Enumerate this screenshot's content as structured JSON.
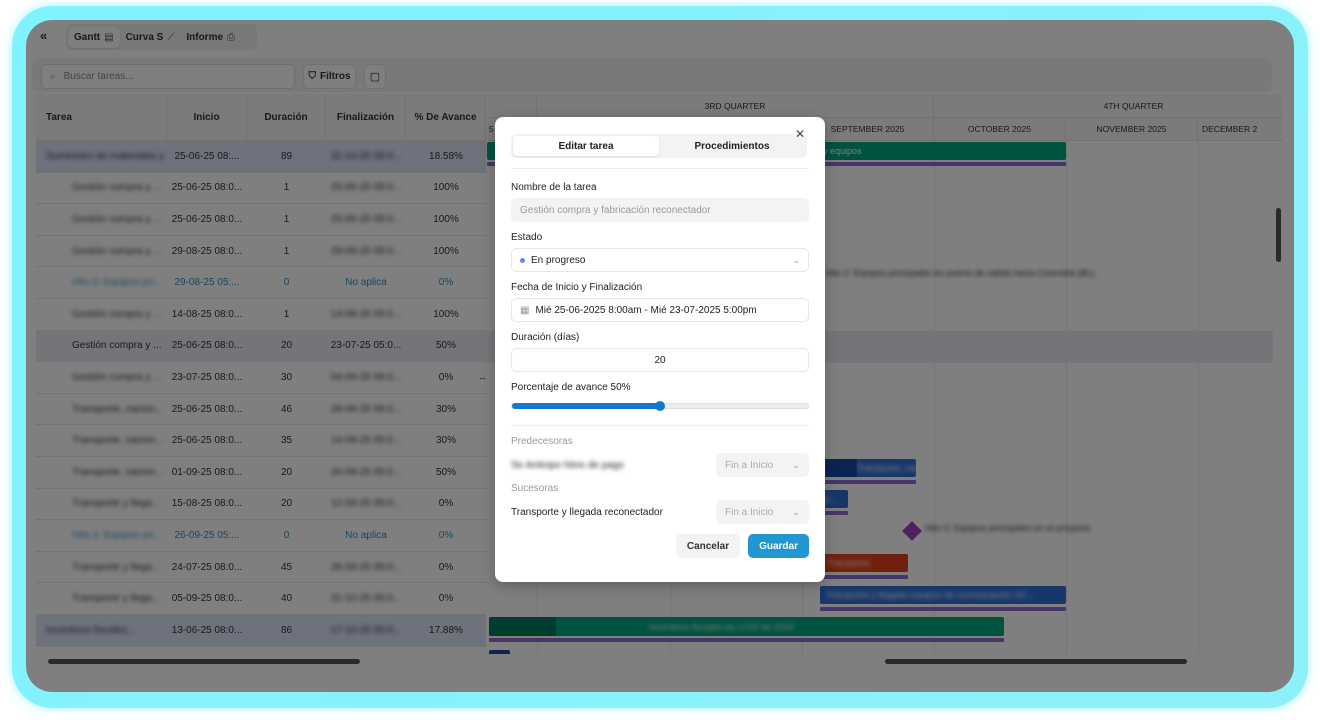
{
  "nav": {
    "collapse_icon": "double-chevron-left",
    "tabs": [
      {
        "label": "Gantt",
        "icon": "gantt-icon",
        "active": true
      },
      {
        "label": "Curva S",
        "icon": "line-chart-icon"
      },
      {
        "label": "Informe",
        "icon": "report-icon"
      }
    ]
  },
  "toolbar": {
    "search_placeholder": "Buscar tareas...",
    "filters_label": "Filtros"
  },
  "table": {
    "columns": [
      "Tarea",
      "Inicio",
      "Duración",
      "Finalización",
      "% De Avance"
    ],
    "rows": [
      {
        "task": "Suministro de materiales y equipos",
        "start": "25-06-25 08:...",
        "duration": "89",
        "end": "31-10-25 05:0...",
        "progress": "18.58%",
        "type": "parent"
      },
      {
        "task": "Gestión compra y ...",
        "start": "25-06-25 08:0...",
        "duration": "1",
        "end": "25-06-25 05:0...",
        "progress": "100%"
      },
      {
        "task": "Gestión compra y ...",
        "start": "25-06-25 08:0...",
        "duration": "1",
        "end": "25-06-25 05:0...",
        "progress": "100%"
      },
      {
        "task": "Gestión compra y ...",
        "start": "29-08-25 08:0...",
        "duration": "1",
        "end": "29-08-25 05:0...",
        "progress": "100%"
      },
      {
        "task": "Hito 3: Equipos pri...",
        "start": "29-08-25 05:...",
        "duration": "0",
        "end": "No aplica",
        "progress": "0%",
        "type": "hito"
      },
      {
        "task": "Gestión compra y ...",
        "start": "14-08-25 08:0...",
        "duration": "1",
        "end": "14-08-25 05:0...",
        "progress": "100%"
      },
      {
        "task": "Gestión compra y ...",
        "start": "25-06-25 08:0...",
        "duration": "20",
        "end": "23-07-25 05:0...",
        "progress": "50%",
        "type": "selected"
      },
      {
        "task": "Gestión compra y ...",
        "start": "23-07-25 08:0...",
        "duration": "30",
        "end": "04-09-25 05:0...",
        "progress": "0%"
      },
      {
        "task": "Transporte, nacion...",
        "start": "25-06-25 08:0...",
        "duration": "46",
        "end": "28-08-25 05:0...",
        "progress": "30%"
      },
      {
        "task": "Transporte, nacion...",
        "start": "25-06-25 08:0...",
        "duration": "35",
        "end": "14-08-25 05:0...",
        "progress": "30%"
      },
      {
        "task": "Transporte, nacion...",
        "start": "01-09-25 08:0...",
        "duration": "20",
        "end": "26-09-25 05:0...",
        "progress": "50%"
      },
      {
        "task": "Transporte y llega...",
        "start": "15-08-25 08:0...",
        "duration": "20",
        "end": "12-09-25 05:0...",
        "progress": "0%"
      },
      {
        "task": "Hito 3: Equipos pri...",
        "start": "26-09-25 05:...",
        "duration": "0",
        "end": "No aplica",
        "progress": "0%",
        "type": "hito"
      },
      {
        "task": "Transporte y llega...",
        "start": "24-07-25 08:0...",
        "duration": "45",
        "end": "26-09-25 05:0...",
        "progress": "0%"
      },
      {
        "task": "Transporte y llega...",
        "start": "05-09-25 08:0...",
        "duration": "40",
        "end": "31-10-25 05:0...",
        "progress": "0%"
      },
      {
        "task": "Incentivos fiscales...",
        "start": "13-06-25 08:0...",
        "duration": "86",
        "end": "17-10-25 05:0...",
        "progress": "17.88%",
        "type": "parent"
      }
    ]
  },
  "gantt": {
    "quarters": [
      "",
      "3RD QUARTER",
      "4TH QUARTER"
    ],
    "months": [
      "5",
      "",
      "",
      "SEPTEMBER 2025",
      "OCTOBER 2025",
      "NOVEMBER 2025",
      "DECEMBER 2"
    ],
    "labels": {
      "bar0": "y equipos",
      "hito1": "Hito 2: Equipos principales en puerto de salida hacia Colombia (BL)",
      "bar9": "Transporte, nacional...",
      "bar10": "Trans...",
      "hito2": "Hito 3: Equipos principales en el proyecto",
      "bar12": "Transporte",
      "bar13": "Transporte y llegada equipos de comunicación SC...",
      "bar14": "Incentivos fiscales ley 1715 de 2014"
    },
    "colors": {
      "green": "#00a67e",
      "blue": "#2f6fd6",
      "red": "#e2401b",
      "purple": "#8e6bd3",
      "milestone": "#a03fbf"
    }
  },
  "modal": {
    "tabs": [
      "Editar tarea",
      "Procedimientos"
    ],
    "close_icon": "close-icon",
    "name_label": "Nombre de la tarea",
    "name_value": "Gestión compra y fabricación reconectador",
    "status_label": "Estado",
    "status_value": "En progreso",
    "dates_label": "Fecha de Inicio y Finalización",
    "dates_value": "Mié 25-06-2025 8:00am - Mié 23-07-2025 5:00pm",
    "duration_label": "Duración (días)",
    "duration_value": "20",
    "progress_label": "Porcentaje de avance 50%",
    "progress_value": 50,
    "predecessors_label": "Predecesoras",
    "predecessor_name": "Se Anticipo hitos de pago",
    "predecessor_type": "Fin a Inicio",
    "successors_label": "Sucesoras",
    "successor_name": "Transporte y llegada reconectador",
    "successor_type": "Fin a Inicio",
    "cancel": "Cancelar",
    "save": "Guardar"
  }
}
